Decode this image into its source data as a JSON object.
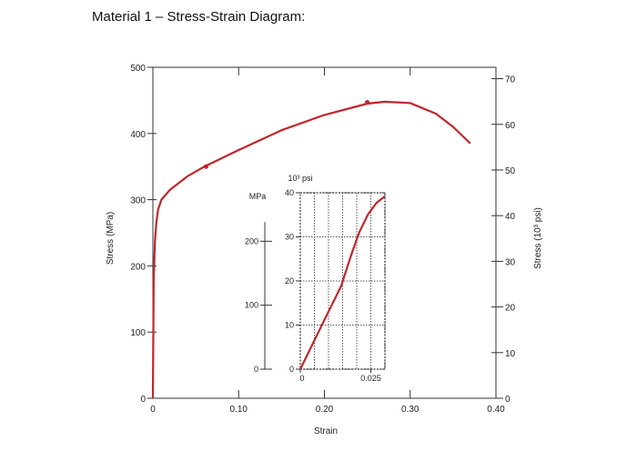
{
  "page": {
    "title": "Material 1 – Stress-Strain Diagram:"
  },
  "colors": {
    "curve": "#c0262c",
    "axis": "#333333",
    "grid": "#555555"
  },
  "chart_data": [
    {
      "type": "line",
      "title": "",
      "xlabel": "Strain",
      "ylabel": "Stress (MPa)",
      "y2label": "Stress (10³ psi)",
      "xlim": [
        0,
        0.4
      ],
      "ylim": [
        0,
        500
      ],
      "y2lim": [
        0,
        72.5
      ],
      "x_ticks": [
        "0",
        "0.10",
        "0.20",
        "0.30",
        "0.40"
      ],
      "x_tick_values": [
        0,
        0.1,
        0.2,
        0.3,
        0.4
      ],
      "y_ticks": [
        "0",
        "100",
        "200",
        "300",
        "400",
        "500"
      ],
      "y_tick_values": [
        0,
        100,
        200,
        300,
        400,
        500
      ],
      "y2_ticks": [
        "0",
        "10",
        "20",
        "30",
        "40",
        "50",
        "60",
        "70"
      ],
      "y2_tick_values": [
        0,
        10,
        20,
        30,
        40,
        50,
        60,
        70
      ],
      "grid": false,
      "series": [
        {
          "x": [
            0,
            0.001,
            0.0025,
            0.004,
            0.006,
            0.01,
            0.02,
            0.04,
            0.06,
            0.1,
            0.15,
            0.2,
            0.25,
            0.27,
            0.3,
            0.33,
            0.35,
            0.37
          ],
          "y": [
            0,
            180,
            240,
            265,
            285,
            300,
            315,
            335,
            350,
            375,
            405,
            428,
            445,
            448,
            446,
            430,
            410,
            385
          ]
        }
      ],
      "markers": [
        {
          "x": 0.062,
          "y": 350
        },
        {
          "x": 0.25,
          "y": 447
        }
      ]
    },
    {
      "type": "line",
      "title": "",
      "xlabel": "",
      "ylabel": "MPa",
      "y2label": "10³ psi",
      "xlim": [
        0,
        0.03
      ],
      "ylim": [
        0,
        276
      ],
      "y2lim": [
        0,
        40
      ],
      "x_ticks": [
        "0",
        "0.025"
      ],
      "x_tick_values": [
        0,
        0.025
      ],
      "y_ticks": [
        "0",
        "100",
        "200"
      ],
      "y_tick_values": [
        0,
        100,
        200
      ],
      "y2_ticks": [
        "0",
        "10",
        "20",
        "30",
        "40"
      ],
      "y2_tick_values": [
        0,
        10,
        20,
        30,
        40
      ],
      "grid": true,
      "series": [
        {
          "x": [
            0,
            0.005,
            0.01,
            0.0145,
            0.018,
            0.021,
            0.024,
            0.027,
            0.0299
          ],
          "y": [
            0,
            45,
            90,
            130,
            178,
            215,
            242,
            260,
            270
          ]
        }
      ]
    }
  ]
}
